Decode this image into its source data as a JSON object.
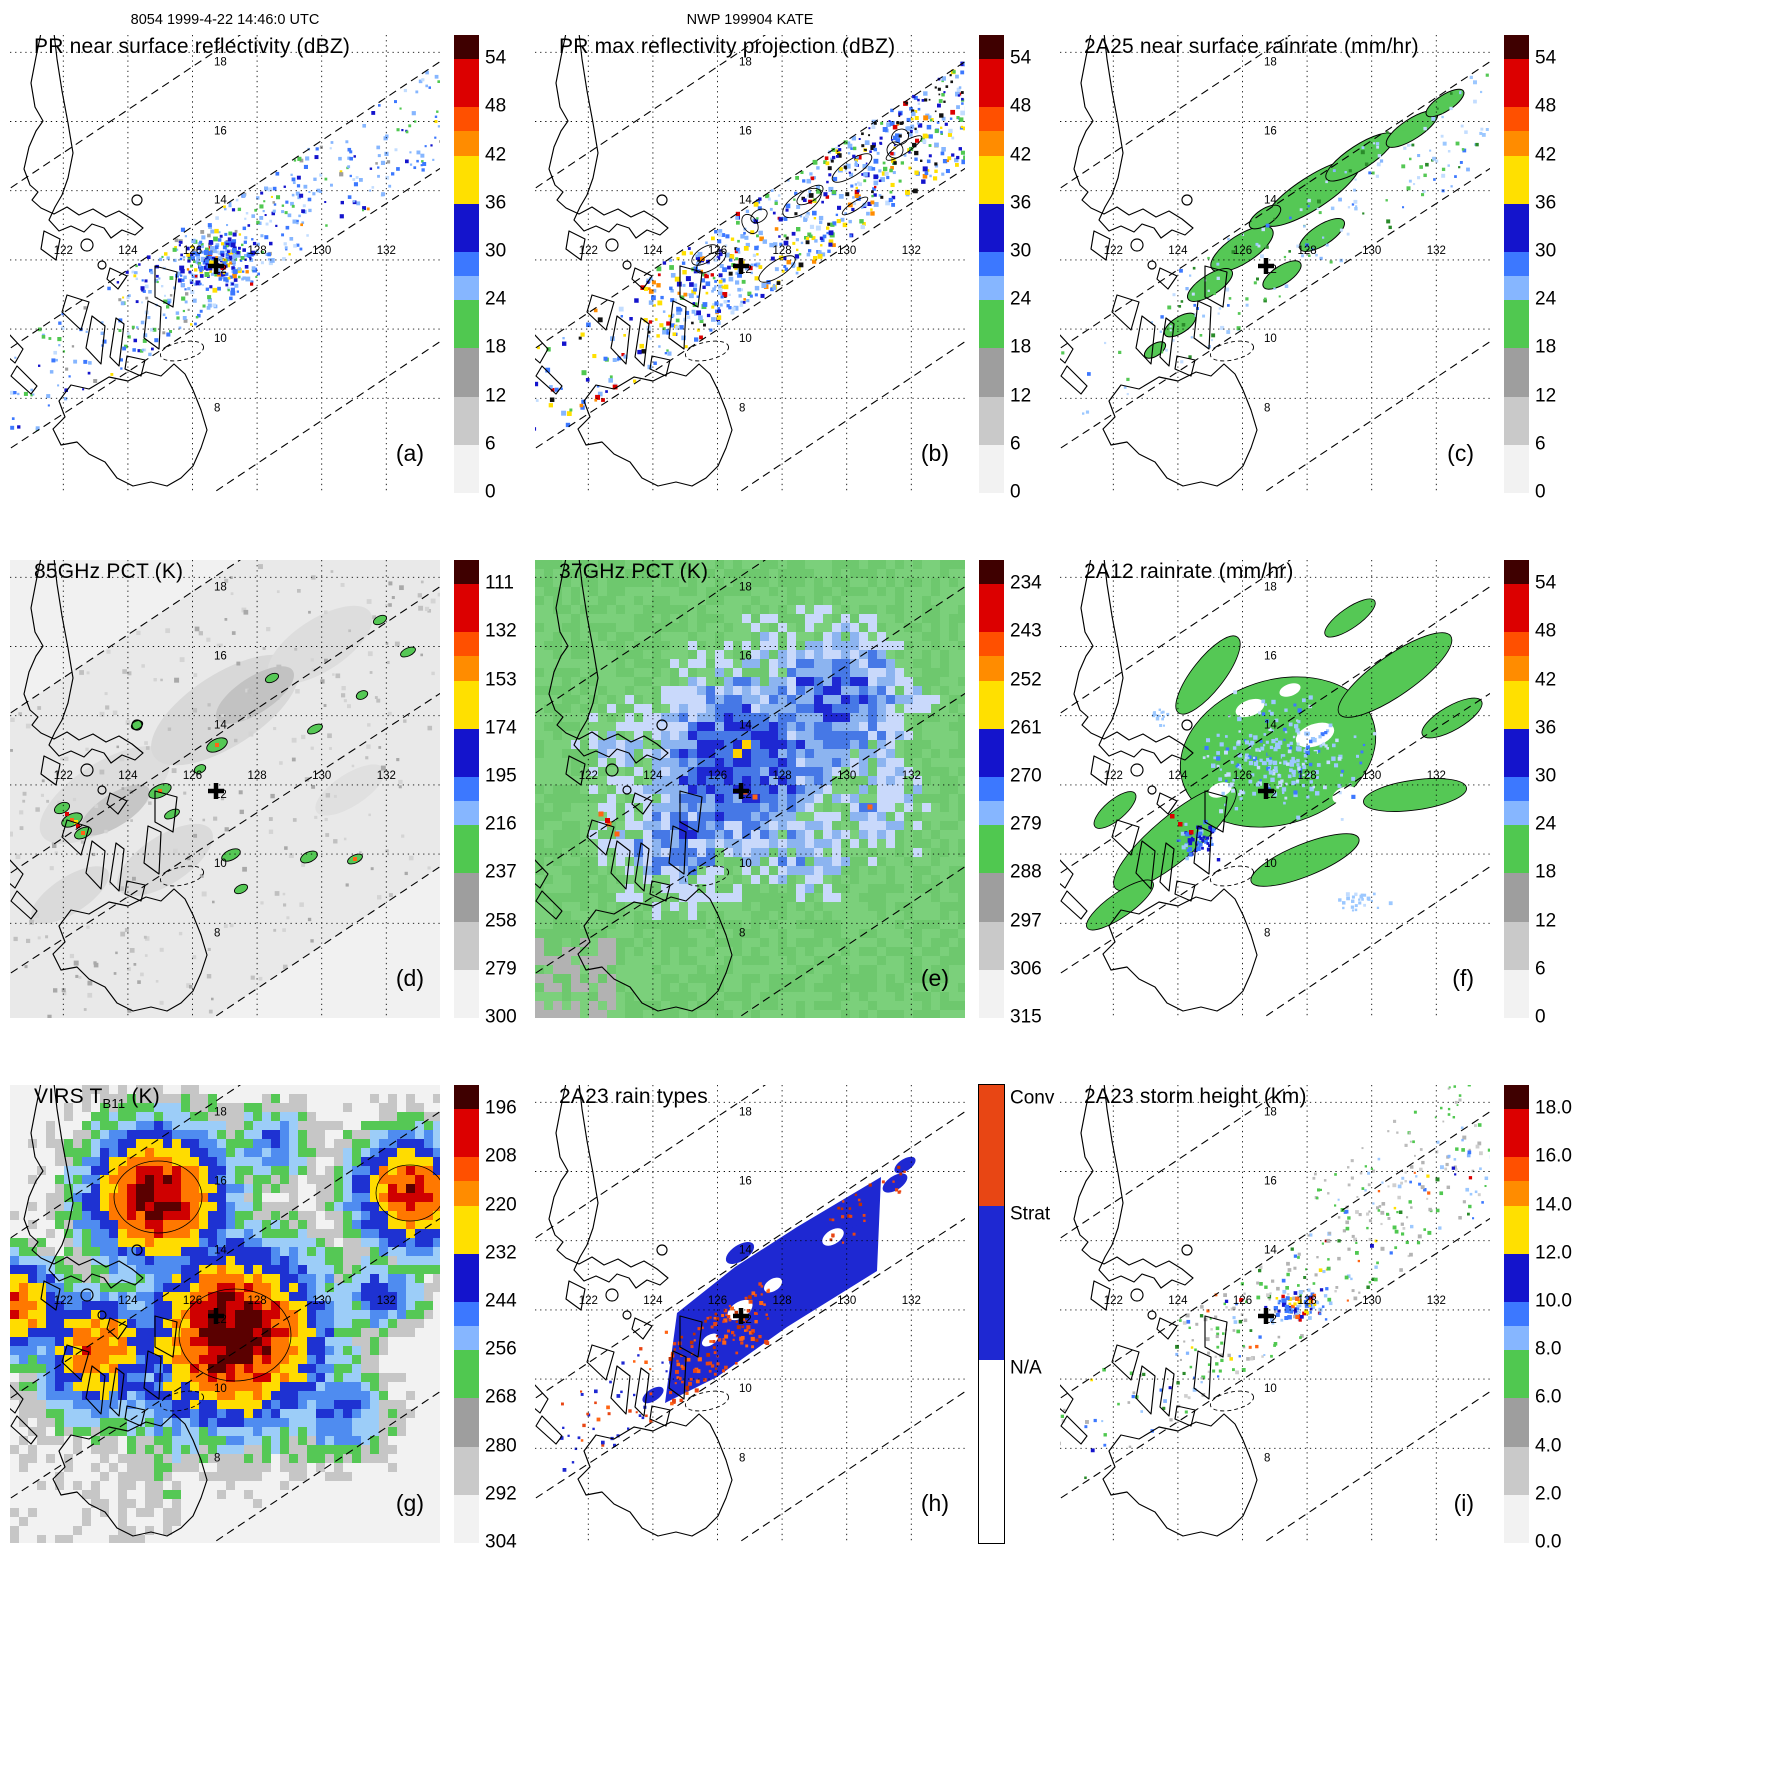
{
  "header": {
    "left": "8054 1999-4-22 14:46:0 UTC",
    "center": "NWP 199904 KATE"
  },
  "map_labels": {
    "lon": [
      "122",
      "124",
      "126",
      "128",
      "130",
      "132"
    ],
    "lat": [
      "18",
      "16",
      "14",
      "12",
      "10",
      "8"
    ]
  },
  "panels": [
    {
      "id": "a",
      "letter": "(a)",
      "title": "PR near surface reflectivity (dBZ)",
      "sub": "",
      "suffix": "",
      "scale": "dbz",
      "style": "pr_refl"
    },
    {
      "id": "b",
      "letter": "(b)",
      "title": "PR max reflectivity projection (dBZ)",
      "sub": "",
      "suffix": "",
      "scale": "dbz",
      "style": "pr_max"
    },
    {
      "id": "c",
      "letter": "(c)",
      "title": "2A25 near surface rainrate (mm/hr)",
      "sub": "",
      "suffix": "",
      "scale": "dbz",
      "style": "rr2a25"
    },
    {
      "id": "d",
      "letter": "(d)",
      "title": "85GHz PCT (K)",
      "sub": "",
      "suffix": "",
      "scale": "pct85",
      "style": "pct85"
    },
    {
      "id": "e",
      "letter": "(e)",
      "title": "37GHz PCT (K)",
      "sub": "",
      "suffix": "",
      "scale": "pct37",
      "style": "pct37"
    },
    {
      "id": "f",
      "letter": "(f)",
      "title": "2A12 rainrate (mm/hr)",
      "sub": "",
      "suffix": "",
      "scale": "dbz",
      "style": "rr2a12"
    },
    {
      "id": "g",
      "letter": "(g)",
      "title": "VIRS T",
      "sub": "B11",
      "suffix": " (K)",
      "scale": "virs",
      "style": "virs"
    },
    {
      "id": "h",
      "letter": "(h)",
      "title": "2A23 rain types",
      "sub": "",
      "suffix": "",
      "scale": "raintype",
      "style": "raintype"
    },
    {
      "id": "i",
      "letter": "(i)",
      "title": "2A23 storm height (km)",
      "sub": "",
      "suffix": "",
      "scale": "height",
      "style": "height"
    }
  ],
  "colorbar_scales": {
    "dbz": {
      "ticks": [
        "54",
        "48",
        "42",
        "36",
        "30",
        "24",
        "18",
        "12",
        "6",
        "0"
      ]
    },
    "pct85": {
      "ticks": [
        "111",
        "132",
        "153",
        "174",
        "195",
        "216",
        "237",
        "258",
        "279",
        "300"
      ]
    },
    "pct37": {
      "ticks": [
        "234",
        "243",
        "252",
        "261",
        "270",
        "279",
        "288",
        "297",
        "306",
        "315"
      ]
    },
    "virs": {
      "ticks": [
        "196",
        "208",
        "220",
        "232",
        "244",
        "256",
        "268",
        "280",
        "292",
        "304"
      ]
    },
    "height": {
      "ticks": [
        "18.0",
        "16.0",
        "14.0",
        "12.0",
        "10.0",
        "8.0",
        "6.0",
        "4.0",
        "2.0",
        "0.0"
      ]
    },
    "raintype": {
      "labels": [
        "Conv",
        "Strat",
        "N/A"
      ]
    }
  },
  "colors": {
    "bar_stops": [
      [
        "#3f0000",
        3
      ],
      [
        "#dc0000",
        6
      ],
      [
        "#ff5000",
        3
      ],
      [
        "#ff8c00",
        3
      ],
      [
        "#ffe000",
        6
      ],
      [
        "#1414cc",
        6
      ],
      [
        "#3c78ff",
        3
      ],
      [
        "#86b6ff",
        3
      ],
      [
        "#50c850",
        6
      ],
      [
        "#9e9e9e",
        6
      ],
      [
        "#c9c9c9",
        6
      ],
      [
        "#f2f2f2",
        6
      ]
    ],
    "raintype": {
      "conv": "#e84614",
      "strat": "#1e28d2",
      "na": "#ffffff"
    }
  }
}
